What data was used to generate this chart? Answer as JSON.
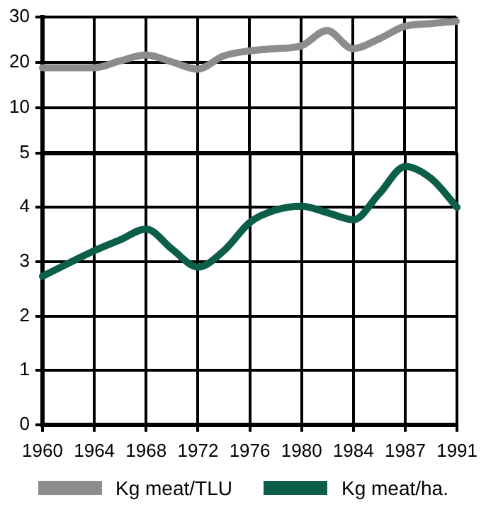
{
  "chart_data": [
    {
      "type": "line",
      "categories": [
        "1960",
        null,
        "1964",
        null,
        "1968",
        null,
        "1972",
        null,
        "1976",
        null,
        "1980",
        null,
        "1984",
        null,
        "1987",
        null,
        "1991"
      ],
      "series": [
        {
          "name": "Kg meat/TLU",
          "color": "#8c8c8c",
          "values": [
            18.8,
            18.8,
            18.8,
            20.3,
            21.6,
            20.1,
            18.5,
            21.4,
            22.5,
            23,
            23.6,
            27,
            23,
            25.1,
            27.9,
            28.5,
            29
          ]
        }
      ],
      "ylim": [
        0,
        30
      ],
      "yticks": [
        10,
        20,
        30
      ],
      "tick_labels": "y",
      "grid": true,
      "legend": "bottom",
      "marker": "none",
      "line_style": "solid"
    },
    {
      "type": "line",
      "categories": [
        "1960",
        null,
        "1964",
        null,
        "1968",
        null,
        "1972",
        null,
        "1976",
        null,
        "1980",
        null,
        "1984",
        null,
        "1987",
        null,
        "1991"
      ],
      "series": [
        {
          "name": "Kg meat/ha.",
          "color": "#0b5e48",
          "values": [
            2.73,
            2.97,
            3.2,
            3.4,
            3.6,
            3.23,
            2.9,
            3.2,
            3.72,
            3.95,
            4.02,
            3.9,
            3.77,
            4.25,
            4.75,
            4.53,
            4.0
          ]
        }
      ],
      "ylim": [
        0,
        5
      ],
      "yticks": [
        0,
        1,
        2,
        3,
        4,
        5
      ],
      "grid": true,
      "legend": "bottom",
      "marker": "none",
      "line_style": "solid"
    }
  ]
}
